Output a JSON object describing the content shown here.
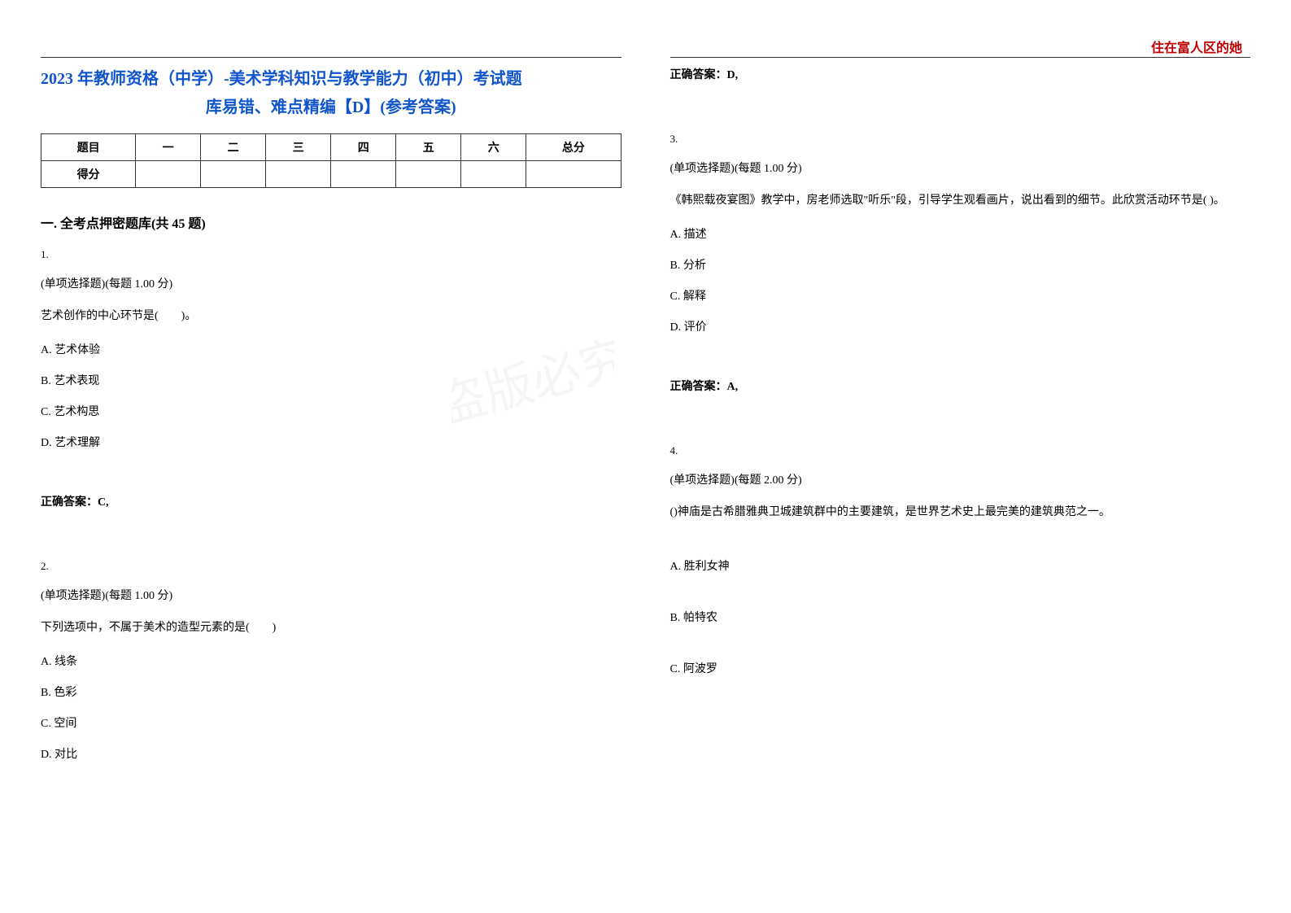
{
  "header_right": "住在富人区的她",
  "title_line1": "2023 年教师资格（中学）-美术学科知识与教学能力（初中）考试题",
  "title_line2": "库易错、难点精编【D】(参考答案)",
  "score_table": {
    "headers": [
      "题目",
      "一",
      "二",
      "三",
      "四",
      "五",
      "六",
      "总分"
    ],
    "row_label": "得分"
  },
  "section_title": "一. 全考点押密题库(共 45 题)",
  "questions": [
    {
      "num": "1.",
      "meta": "(单项选择题)(每题 1.00 分)",
      "stem": "艺术创作的中心环节是(　　)。",
      "options": [
        "A. 艺术体验",
        "B. 艺术表现",
        "C. 艺术构思",
        "D. 艺术理解"
      ],
      "answer": "正确答案：C,"
    },
    {
      "num": "2.",
      "meta": "(单项选择题)(每题 1.00 分)",
      "stem": "下列选项中，不属于美术的造型元素的是(　　)",
      "options": [
        "A. 线条",
        "B. 色彩",
        "C. 空间",
        "D. 对比"
      ],
      "answer": "正确答案：D,"
    },
    {
      "num": "3.",
      "meta": "(单项选择题)(每题 1.00 分)",
      "stem": "《韩熙载夜宴图》教学中，房老师选取\"听乐\"段，引导学生观看画片，说出看到的细节。此欣赏活动环节是( )。",
      "options": [
        "A. 描述",
        "B. 分析",
        "C. 解释",
        "D. 评价"
      ],
      "answer": "正确答案：A,"
    },
    {
      "num": "4.",
      "meta": "(单项选择题)(每题 2.00 分)",
      "stem": "()神庙是古希腊雅典卫城建筑群中的主要建筑，是世界艺术史上最完美的建筑典范之一。",
      "options": [
        "A. 胜利女神",
        "B. 帕特农",
        "C. 阿波罗"
      ],
      "answer": ""
    }
  ],
  "colors": {
    "title_color": "#1155cc",
    "header_right_color": "#c00000",
    "text_color": "#000000",
    "border_color": "#333333",
    "background": "#ffffff"
  },
  "typography": {
    "title_fontsize": 20,
    "section_fontsize": 16,
    "body_fontsize": 14,
    "small_fontsize": 13
  }
}
